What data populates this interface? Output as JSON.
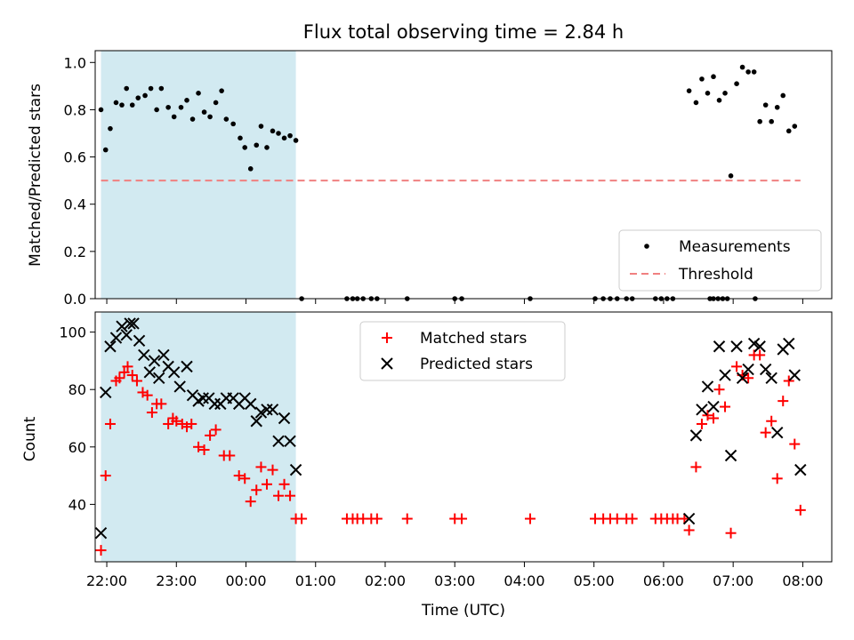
{
  "chart_data": [
    {
      "type": "scatter",
      "title": "Flux total observing time = 2.84 h",
      "ylabel": "Matched/Predicted stars",
      "xlabel": "",
      "ylim": [
        0.0,
        1.05
      ],
      "yticks": [
        "0.0",
        "0.2",
        "0.4",
        "0.6",
        "0.8",
        "1.0"
      ],
      "xlim": [
        "21:50",
        "08:25"
      ],
      "xticks_shown": false,
      "shaded_interval": {
        "start": "21:55",
        "end": "00:43",
        "color": "#add8e6"
      },
      "legend": {
        "placement": "lower-right",
        "entries": [
          "Measurements",
          "Threshold"
        ]
      },
      "threshold": {
        "name": "Threshold",
        "value": 0.5,
        "x_start": "21:55",
        "x_end": "07:58",
        "color": "#f08080",
        "style": "dashed"
      },
      "series": [
        {
          "name": "Measurements",
          "color": "#000000",
          "marker": "dot",
          "points": [
            [
              "21:55",
              0.8
            ],
            [
              "21:59",
              0.63
            ],
            [
              "22:03",
              0.72
            ],
            [
              "22:08",
              0.83
            ],
            [
              "22:13",
              0.82
            ],
            [
              "22:17",
              0.89
            ],
            [
              "22:22",
              0.82
            ],
            [
              "22:27",
              0.85
            ],
            [
              "22:33",
              0.86
            ],
            [
              "22:38",
              0.89
            ],
            [
              "22:43",
              0.8
            ],
            [
              "22:47",
              0.89
            ],
            [
              "22:53",
              0.81
            ],
            [
              "22:58",
              0.77
            ],
            [
              "23:04",
              0.81
            ],
            [
              "23:09",
              0.84
            ],
            [
              "23:14",
              0.76
            ],
            [
              "23:19",
              0.87
            ],
            [
              "23:24",
              0.79
            ],
            [
              "23:29",
              0.77
            ],
            [
              "23:34",
              0.83
            ],
            [
              "23:39",
              0.88
            ],
            [
              "23:43",
              0.76
            ],
            [
              "23:49",
              0.74
            ],
            [
              "23:55",
              0.68
            ],
            [
              "23:59",
              0.64
            ],
            [
              "00:04",
              0.55
            ],
            [
              "00:09",
              0.65
            ],
            [
              "00:13",
              0.73
            ],
            [
              "00:18",
              0.64
            ],
            [
              "00:23",
              0.71
            ],
            [
              "00:28",
              0.7
            ],
            [
              "00:33",
              0.68
            ],
            [
              "00:38",
              0.69
            ],
            [
              "00:43",
              0.67
            ],
            [
              "00:48",
              0.0
            ],
            [
              "01:27",
              0.0
            ],
            [
              "01:32",
              0.0
            ],
            [
              "01:36",
              0.0
            ],
            [
              "01:41",
              0.0
            ],
            [
              "01:48",
              0.0
            ],
            [
              "01:53",
              0.0
            ],
            [
              "02:19",
              0.0
            ],
            [
              "03:00",
              0.0
            ],
            [
              "03:06",
              0.0
            ],
            [
              "04:05",
              0.0
            ],
            [
              "05:01",
              0.0
            ],
            [
              "05:08",
              0.0
            ],
            [
              "05:14",
              0.0
            ],
            [
              "05:20",
              0.0
            ],
            [
              "05:28",
              0.0
            ],
            [
              "05:33",
              0.0
            ],
            [
              "05:53",
              0.0
            ],
            [
              "05:58",
              0.0
            ],
            [
              "06:03",
              0.0
            ],
            [
              "06:08",
              0.0
            ],
            [
              "06:40",
              0.0
            ],
            [
              "06:43",
              0.0
            ],
            [
              "06:47",
              0.0
            ],
            [
              "06:51",
              0.0
            ],
            [
              "06:55",
              0.0
            ],
            [
              "07:19",
              0.0
            ],
            [
              "06:22",
              0.88
            ],
            [
              "06:28",
              0.83
            ],
            [
              "06:33",
              0.93
            ],
            [
              "06:38",
              0.87
            ],
            [
              "06:43",
              0.94
            ],
            [
              "06:48",
              0.84
            ],
            [
              "06:53",
              0.87
            ],
            [
              "06:58",
              0.52
            ],
            [
              "07:03",
              0.91
            ],
            [
              "07:08",
              0.98
            ],
            [
              "07:13",
              0.96
            ],
            [
              "07:18",
              0.96
            ],
            [
              "07:23",
              0.75
            ],
            [
              "07:28",
              0.82
            ],
            [
              "07:33",
              0.75
            ],
            [
              "07:38",
              0.81
            ],
            [
              "07:43",
              0.86
            ],
            [
              "07:48",
              0.71
            ],
            [
              "07:53",
              0.73
            ]
          ]
        }
      ]
    },
    {
      "type": "scatter",
      "title": "",
      "ylabel": "Count",
      "xlabel": "Time (UTC)",
      "ylim": [
        20,
        107
      ],
      "yticks": [
        "40",
        "60",
        "80",
        "100"
      ],
      "xlim": [
        "21:50",
        "08:25"
      ],
      "xticks": [
        "22:00",
        "23:00",
        "00:00",
        "01:00",
        "02:00",
        "03:00",
        "04:00",
        "05:00",
        "06:00",
        "07:00",
        "08:00"
      ],
      "shaded_interval": {
        "start": "21:55",
        "end": "00:43",
        "color": "#add8e6"
      },
      "legend": {
        "placement": "top-center",
        "entries": [
          "Matched stars",
          "Predicted stars"
        ]
      },
      "series": [
        {
          "name": "Matched stars",
          "color": "#ff0000",
          "marker": "plus",
          "points": [
            [
              "21:55",
              24
            ],
            [
              "21:59",
              50
            ],
            [
              "22:03",
              68
            ],
            [
              "22:08",
              83
            ],
            [
              "22:11",
              84
            ],
            [
              "22:15",
              86
            ],
            [
              "22:18",
              88
            ],
            [
              "22:22",
              85
            ],
            [
              "22:26",
              83
            ],
            [
              "22:31",
              79
            ],
            [
              "22:35",
              78
            ],
            [
              "22:39",
              72
            ],
            [
              "22:43",
              75
            ],
            [
              "22:47",
              75
            ],
            [
              "22:53",
              68
            ],
            [
              "22:57",
              70
            ],
            [
              "23:00",
              69
            ],
            [
              "23:05",
              68
            ],
            [
              "23:09",
              67
            ],
            [
              "23:13",
              68
            ],
            [
              "23:19",
              60
            ],
            [
              "23:24",
              59
            ],
            [
              "23:29",
              64
            ],
            [
              "23:34",
              66
            ],
            [
              "23:41",
              57
            ],
            [
              "23:46",
              57
            ],
            [
              "23:54",
              50
            ],
            [
              "23:59",
              49
            ],
            [
              "00:04",
              41
            ],
            [
              "00:09",
              45
            ],
            [
              "00:13",
              53
            ],
            [
              "00:18",
              47
            ],
            [
              "00:23",
              52
            ],
            [
              "00:28",
              43
            ],
            [
              "00:33",
              47
            ],
            [
              "00:38",
              43
            ],
            [
              "00:43",
              35
            ],
            [
              "00:48",
              35
            ],
            [
              "01:27",
              35
            ],
            [
              "01:32",
              35
            ],
            [
              "01:36",
              35
            ],
            [
              "01:41",
              35
            ],
            [
              "01:48",
              35
            ],
            [
              "01:53",
              35
            ],
            [
              "02:19",
              35
            ],
            [
              "03:00",
              35
            ],
            [
              "03:06",
              35
            ],
            [
              "04:05",
              35
            ],
            [
              "05:01",
              35
            ],
            [
              "05:08",
              35
            ],
            [
              "05:14",
              35
            ],
            [
              "05:20",
              35
            ],
            [
              "05:28",
              35
            ],
            [
              "05:33",
              35
            ],
            [
              "05:53",
              35
            ],
            [
              "05:58",
              35
            ],
            [
              "06:03",
              35
            ],
            [
              "06:08",
              35
            ],
            [
              "06:12",
              35
            ],
            [
              "06:18",
              35
            ],
            [
              "06:22",
              31
            ],
            [
              "06:28",
              53
            ],
            [
              "06:33",
              68
            ],
            [
              "06:38",
              71
            ],
            [
              "06:43",
              70
            ],
            [
              "06:48",
              80
            ],
            [
              "06:53",
              74
            ],
            [
              "06:58",
              30
            ],
            [
              "07:03",
              88
            ],
            [
              "07:08",
              85
            ],
            [
              "07:13",
              84
            ],
            [
              "07:18",
              92
            ],
            [
              "07:23",
              92
            ],
            [
              "07:28",
              65
            ],
            [
              "07:33",
              69
            ],
            [
              "07:38",
              49
            ],
            [
              "07:43",
              76
            ],
            [
              "07:48",
              83
            ],
            [
              "07:53",
              61
            ],
            [
              "07:58",
              38
            ]
          ]
        },
        {
          "name": "Predicted stars",
          "color": "#000000",
          "marker": "x",
          "points": [
            [
              "21:55",
              30
            ],
            [
              "21:59",
              79
            ],
            [
              "22:03",
              95
            ],
            [
              "22:08",
              98
            ],
            [
              "22:13",
              102
            ],
            [
              "22:17",
              99
            ],
            [
              "22:20",
              103
            ],
            [
              "22:23",
              103
            ],
            [
              "22:28",
              97
            ],
            [
              "22:32",
              92
            ],
            [
              "22:37",
              86
            ],
            [
              "22:41",
              90
            ],
            [
              "22:45",
              84
            ],
            [
              "22:49",
              92
            ],
            [
              "22:53",
              88
            ],
            [
              "22:58",
              86
            ],
            [
              "23:03",
              81
            ],
            [
              "23:09",
              88
            ],
            [
              "23:14",
              78
            ],
            [
              "23:19",
              76
            ],
            [
              "23:23",
              77
            ],
            [
              "23:28",
              77
            ],
            [
              "23:33",
              75
            ],
            [
              "23:38",
              75
            ],
            [
              "23:43",
              77
            ],
            [
              "23:49",
              77
            ],
            [
              "23:54",
              75
            ],
            [
              "23:59",
              77
            ],
            [
              "00:04",
              75
            ],
            [
              "00:09",
              69
            ],
            [
              "00:13",
              72
            ],
            [
              "00:18",
              73
            ],
            [
              "00:23",
              73
            ],
            [
              "00:28",
              62
            ],
            [
              "00:33",
              70
            ],
            [
              "00:38",
              62
            ],
            [
              "00:43",
              52
            ],
            [
              "06:22",
              35
            ],
            [
              "06:28",
              64
            ],
            [
              "06:33",
              73
            ],
            [
              "06:38",
              81
            ],
            [
              "06:43",
              74
            ],
            [
              "06:48",
              95
            ],
            [
              "06:53",
              85
            ],
            [
              "06:58",
              57
            ],
            [
              "07:03",
              95
            ],
            [
              "07:08",
              84
            ],
            [
              "07:13",
              87
            ],
            [
              "07:18",
              96
            ],
            [
              "07:23",
              95
            ],
            [
              "07:28",
              87
            ],
            [
              "07:33",
              84
            ],
            [
              "07:38",
              65
            ],
            [
              "07:43",
              94
            ],
            [
              "07:48",
              96
            ],
            [
              "07:53",
              85
            ],
            [
              "07:58",
              52
            ]
          ]
        }
      ]
    }
  ]
}
